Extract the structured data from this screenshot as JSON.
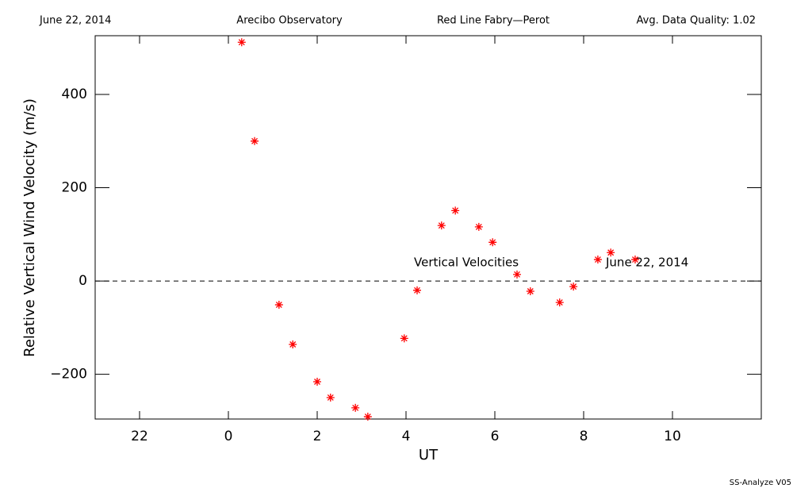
{
  "header": {
    "date": "June 22, 2014",
    "site": "Arecibo Observatory",
    "instrument": "Red Line Fabry—Perot",
    "quality": "Avg. Data Quality: 1.02"
  },
  "footer": "SS-Analyze V05",
  "chart_data": {
    "type": "scatter",
    "x_label": "UT",
    "y_label": "Relative Vertical Wind Velocity (m/s)",
    "annotations": [
      "Vertical Velocities",
      "June 22, 2014"
    ],
    "xlim": [
      -3,
      12
    ],
    "ylim": [
      -296,
      526
    ],
    "xticks": [
      {
        "value": -2,
        "label": "22"
      },
      0,
      2,
      4,
      6,
      8,
      10
    ],
    "yticks": [
      {
        "value": -200,
        "label": "−200"
      },
      0,
      200,
      400
    ],
    "hline": 0,
    "series": [
      {
        "name": "Vertical Velocities",
        "color": "#ff0000",
        "x": [
          0.3,
          0.59,
          1.14,
          1.45,
          2.0,
          2.3,
          2.86,
          3.14,
          3.96,
          4.25,
          4.8,
          5.11,
          5.64,
          5.95,
          6.5,
          6.8,
          7.46,
          7.77,
          8.32,
          8.61,
          9.16
        ],
        "values": [
          512,
          300,
          -51,
          -136,
          -216,
          -250,
          -272,
          -291,
          -123,
          -20,
          119,
          151,
          116,
          83,
          14,
          -22,
          -46,
          -12,
          46,
          61,
          46
        ]
      }
    ]
  }
}
